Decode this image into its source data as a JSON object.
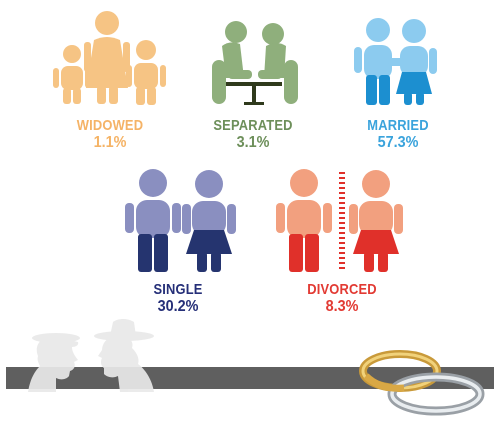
{
  "categories": [
    {
      "key": "widowed",
      "label": "WIDOWED",
      "value": "1.1%",
      "color": "#f5b366"
    },
    {
      "key": "separated",
      "label": "SEPARATED",
      "value": "3.1%",
      "color": "#6d8f5a"
    },
    {
      "key": "married",
      "label": "MARRIED",
      "value": "57.3%",
      "color": "#3aa3dc"
    },
    {
      "key": "single",
      "label": "SINGLE",
      "value": "30.2%",
      "color": "#252f78"
    },
    {
      "key": "divorced",
      "label": "DIVORCED",
      "value": "8.3%",
      "color": "#e23a33"
    }
  ],
  "colors": {
    "widowed_figure": "#f6c484",
    "separated_figure": "#8faf7c",
    "married_light": "#8ccbef",
    "married_dark": "#1c8fd0",
    "single_top": "#8a8fc0",
    "single_bottom": "#25346f",
    "divorced_top": "#f2a07f",
    "divorced_bottom": "#e0302a",
    "bar": "#5f5f5f"
  },
  "icons": [
    "family-icon",
    "separated-couple-icon",
    "married-couple-icon",
    "single-couple-icon",
    "divorced-couple-icon",
    "silhouette-couple-icon",
    "wedding-rings-icon"
  ]
}
